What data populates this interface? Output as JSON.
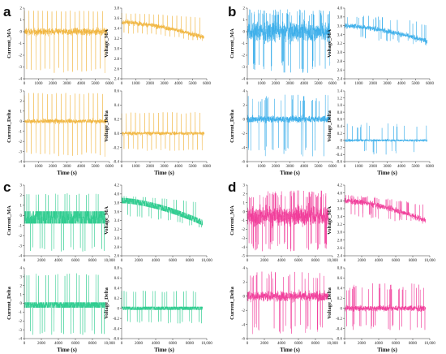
{
  "chart_data": [
    {
      "panel": "a",
      "type": "line",
      "color": "#F0B43C",
      "xlabel": "Time (s)",
      "charts": [
        {
          "ylabel": "Current_MA",
          "xlim": [
            0,
            6000
          ],
          "ylim": [
            -4,
            2
          ],
          "xticks": [
            0,
            1000,
            2000,
            3000,
            4000,
            5000,
            6000
          ],
          "xtick_labels": [
            "0",
            "1000",
            "2000",
            "3000",
            "4000",
            "5000",
            "6000"
          ],
          "yticks": [
            -4,
            -3,
            -2,
            -1,
            0,
            1,
            2
          ],
          "ytick_labels": [
            "-4",
            "-3",
            "-2",
            "-1",
            "0",
            "1",
            "2"
          ],
          "signal": "pulse",
          "pulses": 18,
          "base": 0,
          "band": 0.4,
          "pulse_high": 1.8,
          "pulse_low": -3.6,
          "noise": 0.15,
          "trend": 0
        },
        {
          "ylabel": "Voltage_MA",
          "xlim": [
            0,
            6000
          ],
          "ylim": [
            2.4,
            3.8
          ],
          "xticks": [
            0,
            1000,
            2000,
            3000,
            4000,
            5000,
            6000
          ],
          "xtick_labels": [
            "0",
            "1000",
            "2000",
            "3000",
            "4000",
            "5000",
            "6000"
          ],
          "yticks": [
            2.4,
            2.6,
            2.8,
            3.0,
            3.2,
            3.4,
            3.6,
            3.8
          ],
          "ytick_labels": [
            "2.4",
            "2.6",
            "2.8",
            "3.0",
            "3.2",
            "3.4",
            "3.6",
            "3.8"
          ],
          "signal": "pulse",
          "pulses": 18,
          "base": 3.52,
          "band": 0.06,
          "pulse_high": 3.7,
          "pulse_low": 3.3,
          "noise": 0.03,
          "trend": -0.3
        },
        {
          "ylabel": "Current_Delta",
          "xlim": [
            0,
            6000
          ],
          "ylim": [
            -4,
            3
          ],
          "xticks": [
            0,
            1000,
            2000,
            3000,
            4000,
            5000,
            6000
          ],
          "xtick_labels": [
            "0",
            "1000",
            "2000",
            "3000",
            "4000",
            "5000",
            "6000"
          ],
          "yticks": [
            -4,
            -3,
            -2,
            -1,
            0,
            1,
            2,
            3
          ],
          "ytick_labels": [
            "-4",
            "-3",
            "-2",
            "-1",
            "0",
            "1",
            "2",
            "3"
          ],
          "signal": "pulse",
          "pulses": 18,
          "base": 0,
          "band": 0.3,
          "pulse_high": 2.8,
          "pulse_low": -3.6,
          "noise": 0.1,
          "trend": 0
        },
        {
          "ylabel": "Voltage_Delta",
          "xlim": [
            0,
            6000
          ],
          "ylim": [
            -0.4,
            0.6
          ],
          "xticks": [
            0,
            1000,
            2000,
            3000,
            4000,
            5000,
            6000
          ],
          "xtick_labels": [
            "0",
            "1000",
            "2000",
            "3000",
            "4000",
            "5000",
            "6000"
          ],
          "yticks": [
            -0.4,
            -0.2,
            0,
            0.2,
            0.4,
            0.6
          ],
          "ytick_labels": [
            "-0.4",
            "-0.2",
            "0.0",
            "0.2",
            "0.4",
            "0.6"
          ],
          "signal": "pulse",
          "pulses": 18,
          "base": 0,
          "band": 0.03,
          "pulse_high": 0.3,
          "pulse_low": -0.25,
          "noise": 0.02,
          "trend": 0
        }
      ]
    },
    {
      "panel": "b",
      "type": "line",
      "color": "#3AAEEA",
      "xlabel": "Time (s)",
      "charts": [
        {
          "ylabel": "Current_MA",
          "xlim": [
            0,
            6000
          ],
          "ylim": [
            -4,
            2
          ],
          "xticks": [
            0,
            1000,
            2000,
            3000,
            4000,
            5000,
            6000
          ],
          "xtick_labels": [
            "0",
            "1000",
            "2000",
            "3000",
            "4000",
            "5000",
            "6000"
          ],
          "yticks": [
            -4,
            -3,
            -2,
            -1,
            0,
            1,
            2
          ],
          "ytick_labels": [
            "-4",
            "-3",
            "-2",
            "-1",
            "0",
            "1",
            "2"
          ],
          "signal": "noise",
          "base": 0,
          "band": 1.2,
          "spike_high": 1.9,
          "spike_low": -3.5,
          "spike_rate": 0.08,
          "trend": 0
        },
        {
          "ylabel": "Voltage_MA",
          "xlim": [
            0,
            6000
          ],
          "ylim": [
            2.4,
            4.0
          ],
          "xticks": [
            0,
            1000,
            2000,
            3000,
            4000,
            5000,
            6000
          ],
          "xtick_labels": [
            "0",
            "1000",
            "2000",
            "3000",
            "4000",
            "5000",
            "6000"
          ],
          "yticks": [
            2.4,
            2.6,
            2.8,
            3.0,
            3.2,
            3.4,
            3.6,
            3.8,
            4.0
          ],
          "ytick_labels": [
            "2.4",
            "2.6",
            "2.8",
            "3.0",
            "3.2",
            "3.4",
            "3.6",
            "3.8",
            "4.0"
          ],
          "signal": "noise",
          "base": 3.6,
          "band": 0.08,
          "spike_high": 3.85,
          "spike_low": 3.3,
          "spike_rate": 0.05,
          "trend": -0.35
        },
        {
          "ylabel": "Current_Delta",
          "xlim": [
            0,
            6000
          ],
          "ylim": [
            -6,
            4
          ],
          "xticks": [
            0,
            1000,
            2000,
            3000,
            4000,
            5000,
            6000
          ],
          "xtick_labels": [
            "0",
            "1000",
            "2000",
            "3000",
            "4000",
            "5000",
            "6000"
          ],
          "yticks": [
            -6,
            -4,
            -2,
            0,
            2,
            4
          ],
          "ytick_labels": [
            "-6",
            "-4",
            "-2",
            "0",
            "2",
            "4"
          ],
          "signal": "noise",
          "base": 0,
          "band": 0.7,
          "spike_high": 3.5,
          "spike_low": -5.5,
          "spike_rate": 0.05,
          "trend": 0
        },
        {
          "ylabel": "Voltage_Delta",
          "xlim": [
            0,
            6000
          ],
          "ylim": [
            -0.6,
            1.4
          ],
          "xticks": [
            0,
            1000,
            2000,
            3000,
            4000,
            5000,
            6000
          ],
          "xtick_labels": [
            "0",
            "1000",
            "2000",
            "3000",
            "4000",
            "5000",
            "6000"
          ],
          "yticks": [
            -0.6,
            -0.4,
            -0.2,
            0,
            0.2,
            0.4,
            0.6,
            0.8,
            1.0,
            1.2,
            1.4
          ],
          "ytick_labels": [
            "-0.6",
            "-0.4",
            "-0.2",
            "0",
            "0.2",
            "0.4",
            "0.6",
            "0.8",
            "1.0",
            "1.2",
            "1.4"
          ],
          "signal": "noise",
          "base": 0,
          "band": 0.05,
          "spike_high": 0.5,
          "spike_low": -0.4,
          "spike_rate": 0.03,
          "trend": 0
        }
      ]
    },
    {
      "panel": "c",
      "type": "line",
      "color": "#2ECC8F",
      "xlabel": "Time (s)",
      "charts": [
        {
          "ylabel": "Current_MA",
          "xlim": [
            0,
            10000
          ],
          "ylim": [
            -4,
            3
          ],
          "xticks": [
            0,
            2000,
            4000,
            6000,
            8000,
            10000
          ],
          "xtick_labels": [
            "0",
            "2000",
            "4000",
            "6000",
            "8000",
            "10,000"
          ],
          "yticks": [
            -4,
            -3,
            -2,
            -1,
            0,
            1,
            2,
            3
          ],
          "ytick_labels": [
            "-4",
            "-3",
            "-2",
            "-1",
            "0",
            "1",
            "2",
            "3"
          ],
          "signal": "dense",
          "pulses": 34,
          "base": -0.2,
          "band": 0.6,
          "pulse_high": 2.2,
          "pulse_low": -3.6,
          "noise": 0.2,
          "trend": 0,
          "xmax_data": 9500
        },
        {
          "ylabel": "Voltage_MA",
          "xlim": [
            0,
            10000
          ],
          "ylim": [
            2.6,
            4.2
          ],
          "xticks": [
            0,
            2000,
            4000,
            6000,
            8000,
            10000
          ],
          "xtick_labels": [
            "0",
            "2000",
            "4000",
            "6000",
            "8000",
            "10,000"
          ],
          "yticks": [
            2.6,
            2.8,
            3.0,
            3.2,
            3.4,
            3.6,
            3.8,
            4.0,
            4.2
          ],
          "ytick_labels": [
            "2.6",
            "2.8",
            "3.0",
            "3.2",
            "3.4",
            "3.6",
            "3.8",
            "4.0",
            "4.2"
          ],
          "signal": "dense",
          "pulses": 34,
          "base": 3.85,
          "band": 0.06,
          "pulse_high": 3.95,
          "pulse_low": 3.5,
          "noise": 0.03,
          "trend": -0.5,
          "xmax_data": 9500
        },
        {
          "ylabel": "Current_Delta",
          "xlim": [
            0,
            10000
          ],
          "ylim": [
            -4,
            4
          ],
          "xticks": [
            0,
            2000,
            4000,
            6000,
            8000,
            10000
          ],
          "xtick_labels": [
            "0",
            "2000",
            "4000",
            "6000",
            "8000",
            "10,000"
          ],
          "yticks": [
            -4,
            -3,
            -2,
            -1,
            0,
            1,
            2,
            3,
            4
          ],
          "ytick_labels": [
            "-4",
            "-3",
            "-2",
            "-1",
            "0",
            "1",
            "2",
            "3",
            "4"
          ],
          "signal": "dense",
          "pulses": 34,
          "base": -0.2,
          "band": 0.3,
          "pulse_high": 3.4,
          "pulse_low": -3.6,
          "noise": 0.15,
          "trend": 0,
          "xmax_data": 9500
        },
        {
          "ylabel": "Voltage_Delta",
          "xlim": [
            0,
            10000
          ],
          "ylim": [
            -0.6,
            0.8
          ],
          "xticks": [
            0,
            2000,
            4000,
            6000,
            8000,
            10000
          ],
          "xtick_labels": [
            "0",
            "2000",
            "4000",
            "6000",
            "8000",
            "10,000"
          ],
          "yticks": [
            -0.6,
            -0.4,
            -0.2,
            0,
            0.2,
            0.4,
            0.6,
            0.8
          ],
          "ytick_labels": [
            "-0.6",
            "-0.4",
            "-0.2",
            "0",
            "0.2",
            "0.4",
            "0.6",
            "0.8"
          ],
          "signal": "dense",
          "pulses": 34,
          "base": 0,
          "band": 0.03,
          "pulse_high": 0.35,
          "pulse_low": -0.3,
          "noise": 0.02,
          "trend": 0,
          "xmax_data": 9500
        }
      ]
    },
    {
      "panel": "d",
      "type": "line",
      "color": "#F03C9A",
      "xlabel": "Time (s)",
      "charts": [
        {
          "ylabel": "Current_MA",
          "xlim": [
            0,
            10000
          ],
          "ylim": [
            -5,
            3
          ],
          "xticks": [
            0,
            2000,
            4000,
            6000,
            8000,
            10000
          ],
          "xtick_labels": [
            "0",
            "2000",
            "4000",
            "6000",
            "8000",
            "10,000"
          ],
          "yticks": [
            -5,
            -4,
            -3,
            -2,
            -1,
            0,
            1,
            2,
            3
          ],
          "ytick_labels": [
            "-5",
            "-4",
            "-3",
            "-2",
            "-1",
            "0",
            "1",
            "2",
            "3"
          ],
          "signal": "noise",
          "base": -0.5,
          "band": 1.6,
          "spike_high": 2.4,
          "spike_low": -4.5,
          "spike_rate": 0.1,
          "trend": 0,
          "xmax_data": 9500
        },
        {
          "ylabel": "Voltage_MA",
          "xlim": [
            0,
            10000
          ],
          "ylim": [
            2.4,
            4.2
          ],
          "xticks": [
            0,
            2000,
            4000,
            6000,
            8000,
            10000
          ],
          "xtick_labels": [
            "0",
            "2000",
            "4000",
            "6000",
            "8000",
            "10,000"
          ],
          "yticks": [
            2.4,
            2.6,
            2.8,
            3.0,
            3.2,
            3.4,
            3.6,
            3.8,
            4.0,
            4.2
          ],
          "ytick_labels": [
            "2.4",
            "2.6",
            "2.8",
            "3.0",
            "3.2",
            "3.4",
            "3.6",
            "3.8",
            "4.0",
            "4.2"
          ],
          "signal": "noise",
          "base": 3.8,
          "band": 0.1,
          "spike_high": 3.95,
          "spike_low": 3.4,
          "spike_rate": 0.06,
          "trend": -0.5,
          "xmax_data": 9500
        },
        {
          "ylabel": "Current_Delta",
          "xlim": [
            0,
            10000
          ],
          "ylim": [
            -6,
            4
          ],
          "xticks": [
            0,
            2000,
            4000,
            6000,
            8000,
            10000
          ],
          "xtick_labels": [
            "0",
            "2000",
            "4000",
            "6000",
            "8000",
            "10,000"
          ],
          "yticks": [
            -6,
            -4,
            -2,
            0,
            2,
            4
          ],
          "ytick_labels": [
            "-6",
            "-4",
            "-2",
            "0",
            "2",
            "4"
          ],
          "signal": "noise",
          "base": 0,
          "band": 1.0,
          "spike_high": 3.5,
          "spike_low": -5.5,
          "spike_rate": 0.06,
          "trend": 0,
          "xmax_data": 9500
        },
        {
          "ylabel": "Voltage_Delta",
          "xlim": [
            0,
            10000
          ],
          "ylim": [
            -0.6,
            0.8
          ],
          "xticks": [
            0,
            2000,
            4000,
            6000,
            8000,
            10000
          ],
          "xtick_labels": [
            "0",
            "2000",
            "4000",
            "6000",
            "8000",
            "10,000"
          ],
          "yticks": [
            -0.6,
            -0.4,
            -0.2,
            0,
            0.2,
            0.4,
            0.6,
            0.8
          ],
          "ytick_labels": [
            "-0.6",
            "-0.4",
            "-0.2",
            "0",
            "0.2",
            "0.4",
            "0.6",
            "0.8"
          ],
          "signal": "noise",
          "base": 0,
          "band": 0.08,
          "spike_high": 0.5,
          "spike_low": -0.45,
          "spike_rate": 0.05,
          "trend": 0,
          "xmax_data": 9500
        }
      ]
    }
  ]
}
